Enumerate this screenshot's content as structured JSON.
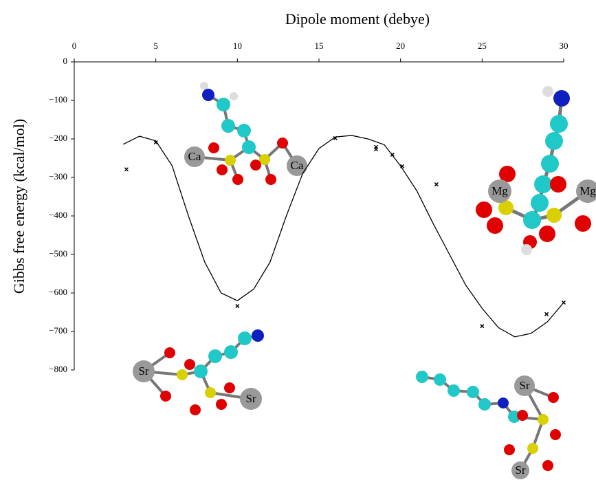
{
  "chart_data": {
    "type": "scatter",
    "x_label": "Dipole moment (debye)",
    "y_label": "Gibbs free energy (kcal/mol)",
    "xlim": [
      0,
      30
    ],
    "xticks": [
      0,
      5,
      10,
      15,
      20,
      25,
      30
    ],
    "ylim": [
      -800,
      0
    ],
    "yticks": [
      0,
      {
        "value": -100,
        "label": "−100"
      },
      {
        "value": -200,
        "label": "−200"
      },
      {
        "value": -300,
        "label": "−300"
      },
      {
        "value": -400,
        "label": "−400"
      },
      {
        "value": -500,
        "label": "−500"
      },
      {
        "value": -600,
        "label": "−600"
      },
      {
        "value": -700,
        "label": "−700"
      },
      {
        "value": -800,
        "label": "−800"
      }
    ],
    "series": [
      {
        "type": "scatter",
        "color": "#000000",
        "x": [
          3.2,
          5.0,
          10.0,
          16.0,
          18.5,
          18.5,
          19.5,
          20.1,
          22.2,
          25.0,
          28.95,
          30.0
        ],
        "values": [
          -279,
          -209,
          -634,
          -198,
          -221,
          -227,
          -241,
          -271,
          -318,
          -686,
          -655,
          -625
        ]
      },
      {
        "type": "line",
        "color": "#000000",
        "x": [
          3,
          4,
          5,
          6,
          7,
          8,
          9,
          10,
          11,
          12,
          13,
          14,
          15,
          16,
          17,
          18,
          19,
          20,
          21,
          22,
          23,
          24,
          25,
          26,
          27,
          28,
          29,
          30
        ],
        "values": [
          -214,
          -193,
          -205,
          -270,
          -400,
          -520,
          -600,
          -620,
          -590,
          -520,
          -400,
          -290,
          -225,
          -195,
          -191,
          -200,
          -215,
          -270,
          -335,
          -420,
          -500,
          -580,
          -640,
          -690,
          -714,
          -705,
          -675,
          -625
        ]
      }
    ],
    "annotations": [
      "Ca",
      "Ca",
      "Mg",
      "Mg",
      "Sr",
      "Sr",
      "Sr",
      "Sr"
    ]
  }
}
